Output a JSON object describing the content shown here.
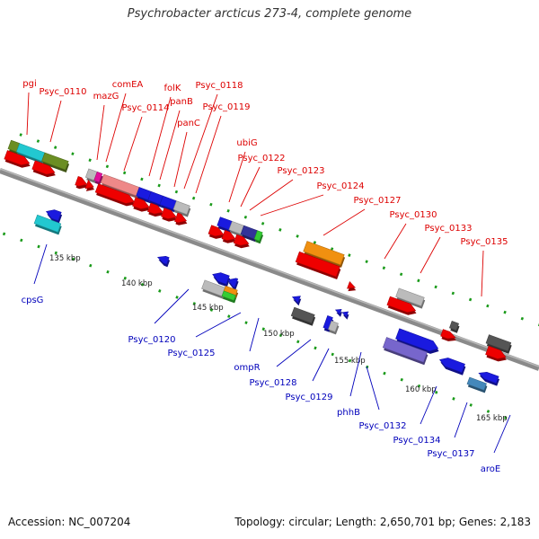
{
  "title": "Psychrobacter arcticus 273-4, complete genome",
  "footer": {
    "accession": "Accession: NC_007204",
    "summary": "Topology: circular; Length: 2,650,701 bp; Genes: 2,183"
  },
  "colors": {
    "top_labels": "#dd0000",
    "bottom_labels": "#0000bb",
    "backbone": "#8a8a8a",
    "ticks": "#1a9a1a"
  },
  "kbp_labels": [
    "135 kbp",
    "140 kbp",
    "145 kbp",
    "150 kbp",
    "155 kbp",
    "160 kbp",
    "165 kbp"
  ],
  "top_gene_labels": [
    "pgi",
    "Psyc_0110",
    "mazG",
    "comEA",
    "Psyc_0114",
    "folK",
    "panB",
    "Psyc_0118",
    "Psyc_0119",
    "panC",
    "ubiG",
    "Psyc_0122",
    "Psyc_0123",
    "Psyc_0124",
    "Psyc_0127",
    "Psyc_0130",
    "Psyc_0133",
    "Psyc_0135"
  ],
  "bottom_gene_labels": [
    "cpsG",
    "Psyc_0120",
    "Psyc_0125",
    "ompR",
    "Psyc_0128",
    "Psyc_0129",
    "phhB",
    "Psyc_0132",
    "Psyc_0134",
    "Psyc_0137",
    "aroE"
  ]
}
